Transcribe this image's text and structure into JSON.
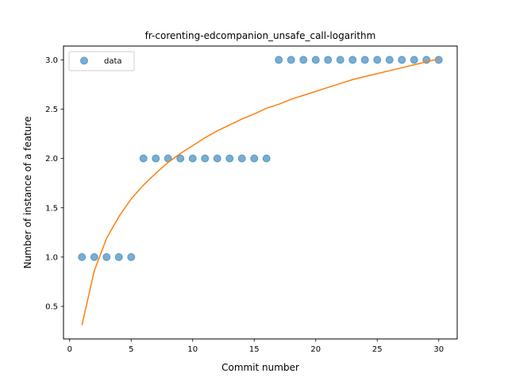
{
  "chart_data": {
    "type": "scatter",
    "title": "fr-corenting-edcompanion_unsafe_call-logarithm",
    "xlabel": "Commit number",
    "ylabel": "Number of instance of a feature",
    "xlim": [
      -0.5,
      31.5
    ],
    "ylim": [
      0.17,
      3.14
    ],
    "xticks": [
      0,
      5,
      10,
      15,
      20,
      25,
      30
    ],
    "yticks": [
      0.5,
      1.0,
      1.5,
      2.0,
      2.5,
      3.0
    ],
    "xtick_labels": [
      "0",
      "5",
      "10",
      "15",
      "20",
      "25",
      "30"
    ],
    "ytick_labels": [
      "0.5",
      "1.0",
      "1.5",
      "2.0",
      "2.5",
      "3.0"
    ],
    "legend": {
      "placement": "top-left",
      "entries": [
        "data"
      ]
    },
    "grid": false,
    "series": [
      {
        "name": "data",
        "kind": "scatter",
        "color": "#1f77b4",
        "x": [
          1,
          2,
          3,
          4,
          5,
          6,
          7,
          8,
          9,
          10,
          11,
          12,
          13,
          14,
          15,
          16,
          17,
          18,
          19,
          20,
          21,
          22,
          23,
          24,
          25,
          26,
          27,
          28,
          29,
          30
        ],
        "y": [
          1,
          1,
          1,
          1,
          1,
          2,
          2,
          2,
          2,
          2,
          2,
          2,
          2,
          2,
          2,
          2,
          3,
          3,
          3,
          3,
          3,
          3,
          3,
          3,
          3,
          3,
          3,
          3,
          3,
          3
        ]
      },
      {
        "kind": "line",
        "color": "#ff7f0e",
        "x": [
          1,
          2,
          3,
          4,
          5,
          6,
          7,
          8,
          9,
          10,
          11,
          12,
          13,
          14,
          15,
          16,
          17,
          18,
          19,
          20,
          21,
          22,
          23,
          24,
          25,
          26,
          27,
          28,
          29,
          30
        ],
        "y": [
          0.31,
          0.86,
          1.19,
          1.41,
          1.59,
          1.73,
          1.85,
          1.96,
          2.05,
          2.13,
          2.21,
          2.28,
          2.34,
          2.4,
          2.45,
          2.51,
          2.55,
          2.6,
          2.64,
          2.68,
          2.72,
          2.76,
          2.8,
          2.83,
          2.86,
          2.89,
          2.92,
          2.95,
          2.98,
          3.01
        ]
      }
    ]
  }
}
